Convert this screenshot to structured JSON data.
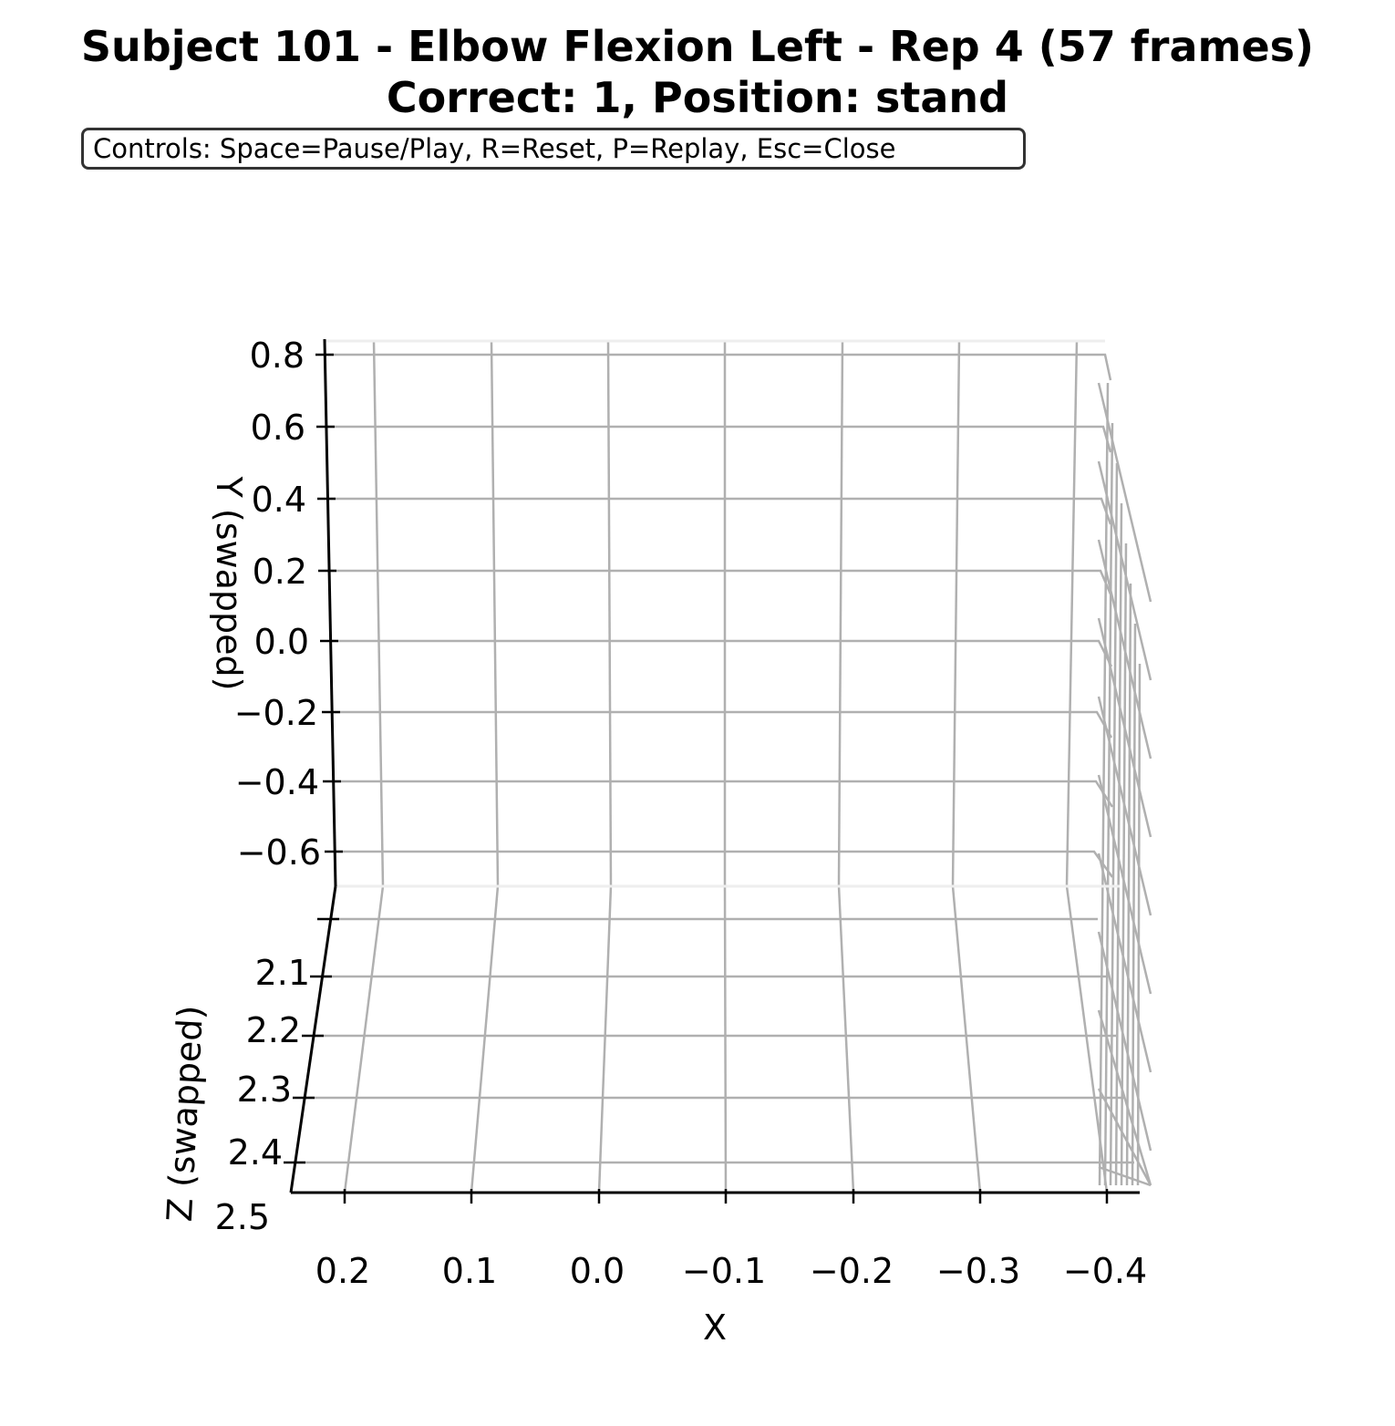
{
  "chart_data": {
    "type": "scatter",
    "projection": "3d",
    "title": "Subject 101 - Elbow Flexion Left - Rep 4 (57 frames)",
    "subtitle": "Correct: 1, Position: stand",
    "controls_text": "Controls: Space=Pause/Play, R=Reset, P=Replay, Esc=Close",
    "xlabel": "X",
    "ylabel": "Y (swapped)",
    "zlabel": "Z (swapped)",
    "x_ticks": [
      "0.2",
      "0.1",
      "0.0",
      "−0.1",
      "−0.2",
      "−0.3",
      "−0.4"
    ],
    "y_ticks": [
      "0.8",
      "0.6",
      "0.4",
      "0.2",
      "0.0",
      "−0.2",
      "−0.4",
      "−0.6"
    ],
    "z_ticks": [
      "2.1",
      "2.2",
      "2.3",
      "2.4",
      "2.5"
    ],
    "xlim": [
      0.24,
      -0.43
    ],
    "ylim": [
      -0.75,
      0.84
    ],
    "zlim": [
      2.05,
      2.5
    ],
    "grid": true,
    "points": [],
    "colors": {
      "grid": "#b0b0b0",
      "axis": "#000000",
      "box_border": "#333333"
    }
  }
}
